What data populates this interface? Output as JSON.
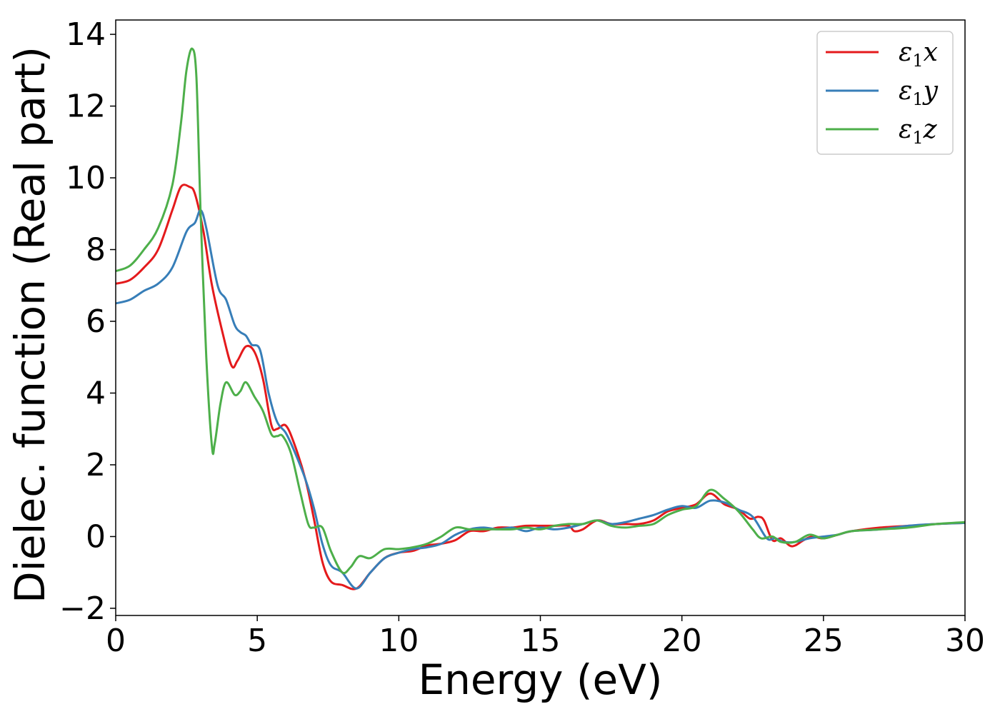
{
  "chart_data": {
    "type": "line",
    "xlabel": "Energy (eV)",
    "ylabel": "Dielec. function (Real part)",
    "xlim": [
      0,
      30
    ],
    "ylim": [
      -2.2,
      14.4
    ],
    "xticks": [
      0,
      5,
      10,
      15,
      20,
      25,
      30
    ],
    "yticks": [
      -2,
      0,
      2,
      4,
      6,
      8,
      10,
      12,
      14
    ],
    "ytick_labels": [
      "−2",
      "0",
      "2",
      "4",
      "6",
      "8",
      "10",
      "12",
      "14"
    ],
    "grid": false,
    "legend_position": "top-right",
    "series": [
      {
        "name": "ε₁x",
        "legend_base": "ε",
        "legend_sub": "1",
        "legend_suffix": "x",
        "color": "#e41a1c",
        "points": [
          [
            0,
            7.05
          ],
          [
            0.5,
            7.15
          ],
          [
            1,
            7.5
          ],
          [
            1.5,
            8.0
          ],
          [
            2,
            9.1
          ],
          [
            2.3,
            9.75
          ],
          [
            2.6,
            9.75
          ],
          [
            2.8,
            9.55
          ],
          [
            3.1,
            8.5
          ],
          [
            3.4,
            7.0
          ],
          [
            3.8,
            5.6
          ],
          [
            4.1,
            4.75
          ],
          [
            4.3,
            4.9
          ],
          [
            4.6,
            5.3
          ],
          [
            4.9,
            5.15
          ],
          [
            5.2,
            4.4
          ],
          [
            5.5,
            3.1
          ],
          [
            5.7,
            3.0
          ],
          [
            6.0,
            3.1
          ],
          [
            6.3,
            2.6
          ],
          [
            6.7,
            1.6
          ],
          [
            7.0,
            0.5
          ],
          [
            7.3,
            -0.7
          ],
          [
            7.6,
            -1.25
          ],
          [
            8.0,
            -1.35
          ],
          [
            8.5,
            -1.45
          ],
          [
            9.0,
            -1.0
          ],
          [
            9.5,
            -0.6
          ],
          [
            10,
            -0.45
          ],
          [
            10.5,
            -0.4
          ],
          [
            11,
            -0.25
          ],
          [
            11.5,
            -0.2
          ],
          [
            12,
            -0.1
          ],
          [
            12.5,
            0.15
          ],
          [
            13,
            0.15
          ],
          [
            13.5,
            0.25
          ],
          [
            14,
            0.25
          ],
          [
            14.5,
            0.3
          ],
          [
            15,
            0.3
          ],
          [
            15.5,
            0.3
          ],
          [
            16,
            0.3
          ],
          [
            16.2,
            0.15
          ],
          [
            16.5,
            0.2
          ],
          [
            17,
            0.45
          ],
          [
            17.5,
            0.35
          ],
          [
            18,
            0.35
          ],
          [
            18.5,
            0.35
          ],
          [
            19,
            0.45
          ],
          [
            19.5,
            0.7
          ],
          [
            20,
            0.8
          ],
          [
            20.5,
            0.9
          ],
          [
            21,
            1.2
          ],
          [
            21.5,
            0.9
          ],
          [
            22,
            0.75
          ],
          [
            22.4,
            0.5
          ],
          [
            22.7,
            0.55
          ],
          [
            22.9,
            0.45
          ],
          [
            23.2,
            -0.1
          ],
          [
            23.5,
            -0.05
          ],
          [
            23.8,
            -0.25
          ],
          [
            24,
            -0.25
          ],
          [
            24.3,
            -0.1
          ],
          [
            24.6,
            0.0
          ],
          [
            25,
            -0.05
          ],
          [
            25.5,
            0.05
          ],
          [
            26,
            0.15
          ],
          [
            27,
            0.25
          ],
          [
            28,
            0.3
          ],
          [
            29,
            0.35
          ],
          [
            30,
            0.38
          ]
        ]
      },
      {
        "name": "ε₁y",
        "legend_base": "ε",
        "legend_sub": "1",
        "legend_suffix": "y",
        "color": "#377eb8",
        "points": [
          [
            0,
            6.5
          ],
          [
            0.5,
            6.6
          ],
          [
            1,
            6.85
          ],
          [
            1.5,
            7.05
          ],
          [
            2,
            7.5
          ],
          [
            2.5,
            8.5
          ],
          [
            2.8,
            8.75
          ],
          [
            3.0,
            9.1
          ],
          [
            3.2,
            8.6
          ],
          [
            3.6,
            7.0
          ],
          [
            3.9,
            6.6
          ],
          [
            4.2,
            5.9
          ],
          [
            4.4,
            5.7
          ],
          [
            4.6,
            5.6
          ],
          [
            4.8,
            5.35
          ],
          [
            5.1,
            5.2
          ],
          [
            5.4,
            4.0
          ],
          [
            5.7,
            3.2
          ],
          [
            6.0,
            2.9
          ],
          [
            6.3,
            2.4
          ],
          [
            6.7,
            1.6
          ],
          [
            7.0,
            0.8
          ],
          [
            7.3,
            -0.2
          ],
          [
            7.6,
            -0.8
          ],
          [
            8.0,
            -1.0
          ],
          [
            8.5,
            -1.45
          ],
          [
            9.0,
            -1.0
          ],
          [
            9.5,
            -0.6
          ],
          [
            10,
            -0.45
          ],
          [
            10.5,
            -0.35
          ],
          [
            11,
            -0.3
          ],
          [
            11.5,
            -0.2
          ],
          [
            12,
            0.05
          ],
          [
            12.5,
            0.2
          ],
          [
            13,
            0.25
          ],
          [
            13.5,
            0.2
          ],
          [
            14,
            0.25
          ],
          [
            14.5,
            0.15
          ],
          [
            15,
            0.25
          ],
          [
            15.5,
            0.2
          ],
          [
            16,
            0.25
          ],
          [
            16.5,
            0.35
          ],
          [
            17,
            0.45
          ],
          [
            17.5,
            0.35
          ],
          [
            18,
            0.4
          ],
          [
            18.5,
            0.5
          ],
          [
            19,
            0.6
          ],
          [
            19.5,
            0.75
          ],
          [
            20,
            0.85
          ],
          [
            20.5,
            0.8
          ],
          [
            21,
            1.0
          ],
          [
            21.5,
            0.95
          ],
          [
            22,
            0.75
          ],
          [
            22.5,
            0.55
          ],
          [
            23,
            -0.05
          ],
          [
            23.3,
            -0.05
          ],
          [
            23.6,
            -0.15
          ],
          [
            24,
            -0.15
          ],
          [
            24.5,
            -0.05
          ],
          [
            25,
            0.0
          ],
          [
            25.5,
            0.05
          ],
          [
            26,
            0.15
          ],
          [
            27,
            0.2
          ],
          [
            28,
            0.3
          ],
          [
            29,
            0.35
          ],
          [
            30,
            0.38
          ]
        ]
      },
      {
        "name": "ε₁z",
        "legend_base": "ε",
        "legend_sub": "1",
        "legend_suffix": "z",
        "color": "#4daf4a",
        "points": [
          [
            0,
            7.4
          ],
          [
            0.5,
            7.55
          ],
          [
            1,
            8.0
          ],
          [
            1.5,
            8.6
          ],
          [
            2,
            9.8
          ],
          [
            2.3,
            11.5
          ],
          [
            2.5,
            13.0
          ],
          [
            2.7,
            13.6
          ],
          [
            2.85,
            12.8
          ],
          [
            3.0,
            9.0
          ],
          [
            3.2,
            5.0
          ],
          [
            3.4,
            2.5
          ],
          [
            3.5,
            2.6
          ],
          [
            3.7,
            3.7
          ],
          [
            3.9,
            4.3
          ],
          [
            4.2,
            3.95
          ],
          [
            4.4,
            4.05
          ],
          [
            4.6,
            4.3
          ],
          [
            4.9,
            3.9
          ],
          [
            5.2,
            3.5
          ],
          [
            5.5,
            2.85
          ],
          [
            5.7,
            2.8
          ],
          [
            5.9,
            2.8
          ],
          [
            6.2,
            2.3
          ],
          [
            6.5,
            1.3
          ],
          [
            6.8,
            0.35
          ],
          [
            7.0,
            0.25
          ],
          [
            7.3,
            0.25
          ],
          [
            7.6,
            -0.4
          ],
          [
            8.0,
            -1.0
          ],
          [
            8.3,
            -0.85
          ],
          [
            8.6,
            -0.55
          ],
          [
            9.0,
            -0.6
          ],
          [
            9.5,
            -0.35
          ],
          [
            10,
            -0.35
          ],
          [
            10.5,
            -0.3
          ],
          [
            11,
            -0.2
          ],
          [
            11.5,
            0.0
          ],
          [
            12,
            0.25
          ],
          [
            12.5,
            0.2
          ],
          [
            13,
            0.2
          ],
          [
            13.5,
            0.2
          ],
          [
            14,
            0.2
          ],
          [
            14.5,
            0.25
          ],
          [
            15,
            0.2
          ],
          [
            15.5,
            0.3
          ],
          [
            16,
            0.35
          ],
          [
            16.5,
            0.35
          ],
          [
            17,
            0.45
          ],
          [
            17.5,
            0.3
          ],
          [
            18,
            0.25
          ],
          [
            18.5,
            0.3
          ],
          [
            19,
            0.35
          ],
          [
            19.5,
            0.6
          ],
          [
            20,
            0.75
          ],
          [
            20.5,
            0.85
          ],
          [
            21,
            1.3
          ],
          [
            21.5,
            1.05
          ],
          [
            22,
            0.7
          ],
          [
            22.5,
            0.2
          ],
          [
            22.8,
            -0.05
          ],
          [
            23.2,
            0.0
          ],
          [
            23.5,
            -0.15
          ],
          [
            24,
            -0.15
          ],
          [
            24.5,
            0.05
          ],
          [
            25,
            -0.05
          ],
          [
            25.5,
            0.05
          ],
          [
            26,
            0.15
          ],
          [
            27,
            0.2
          ],
          [
            28,
            0.25
          ],
          [
            29,
            0.35
          ],
          [
            30,
            0.4
          ]
        ]
      }
    ]
  }
}
